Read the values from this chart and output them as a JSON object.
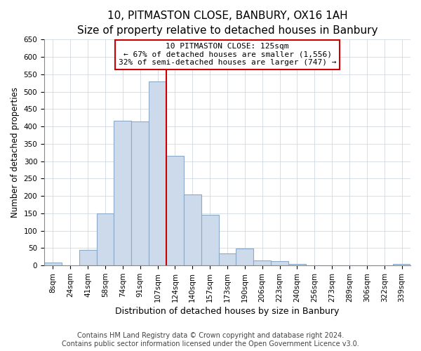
{
  "title": "10, PITMASTON CLOSE, BANBURY, OX16 1AH",
  "subtitle": "Size of property relative to detached houses in Banbury",
  "xlabel": "Distribution of detached houses by size in Banbury",
  "ylabel": "Number of detached properties",
  "bar_labels": [
    "8sqm",
    "24sqm",
    "41sqm",
    "58sqm",
    "74sqm",
    "91sqm",
    "107sqm",
    "124sqm",
    "140sqm",
    "157sqm",
    "173sqm",
    "190sqm",
    "206sqm",
    "223sqm",
    "240sqm",
    "256sqm",
    "273sqm",
    "289sqm",
    "306sqm",
    "322sqm",
    "339sqm"
  ],
  "bar_values": [
    8,
    0,
    44,
    150,
    416,
    415,
    530,
    315,
    205,
    145,
    35,
    49,
    15,
    13,
    5,
    1,
    0,
    0,
    0,
    0,
    5
  ],
  "bar_color": "#ccdaec",
  "bar_edge_color": "#8aaac8",
  "vline_index": 7,
  "vline_color": "#cc0000",
  "annotation_title": "10 PITMASTON CLOSE: 125sqm",
  "annotation_line1": "← 67% of detached houses are smaller (1,556)",
  "annotation_line2": "32% of semi-detached houses are larger (747) →",
  "annotation_box_color": "#ffffff",
  "annotation_border_color": "#cc0000",
  "ylim": [
    0,
    650
  ],
  "yticks": [
    0,
    50,
    100,
    150,
    200,
    250,
    300,
    350,
    400,
    450,
    500,
    550,
    600,
    650
  ],
  "footer_line1": "Contains HM Land Registry data © Crown copyright and database right 2024.",
  "footer_line2": "Contains public sector information licensed under the Open Government Licence v3.0.",
  "title_fontsize": 11,
  "subtitle_fontsize": 9.5,
  "xlabel_fontsize": 9,
  "ylabel_fontsize": 8.5,
  "tick_fontsize": 7.5,
  "footer_fontsize": 7,
  "annotation_fontsize": 8
}
